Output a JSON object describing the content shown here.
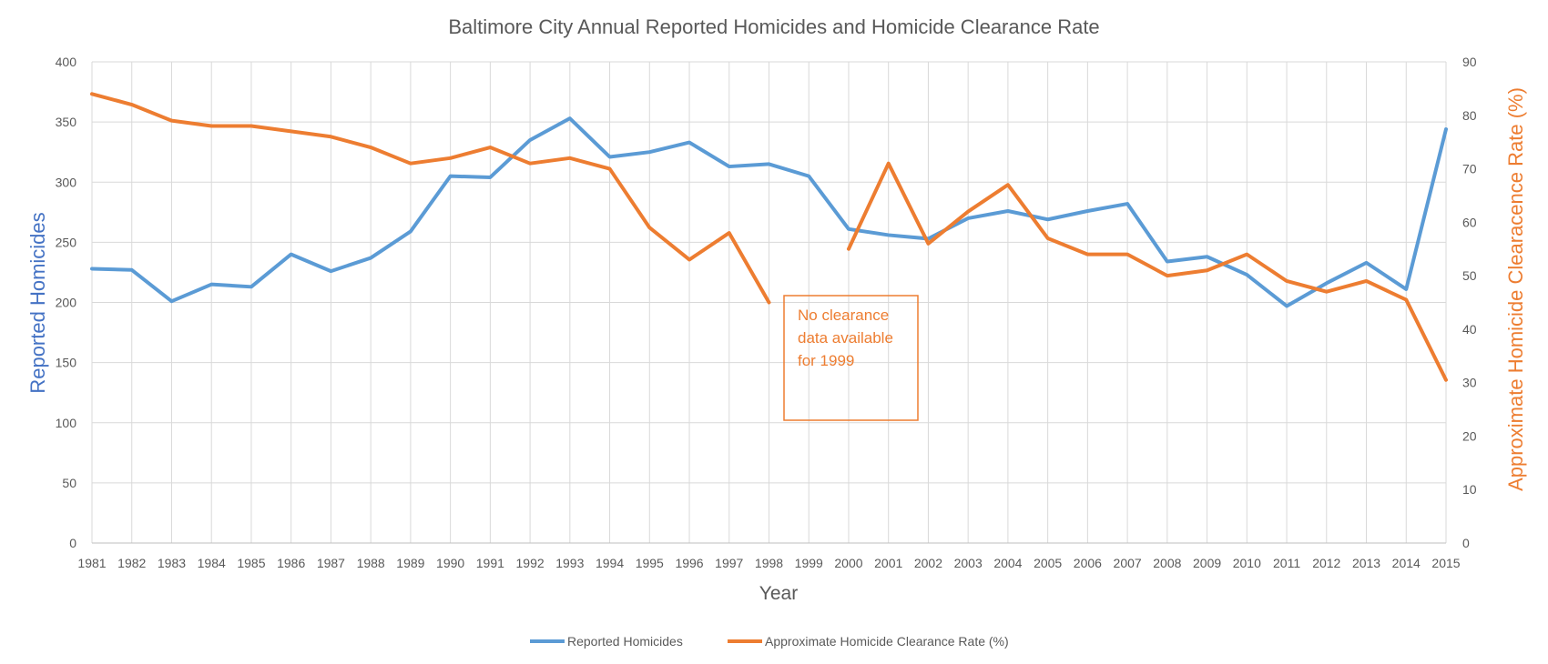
{
  "chart_data": {
    "type": "line",
    "title": "Baltimore City Annual Reported Homicides and Homicide Clearance Rate",
    "xlabel": "Year",
    "ylabel_left": "Reported Homicides",
    "ylabel_right": "Approximate Homicide Clearacence Rate (%)",
    "x": [
      "1981",
      "1982",
      "1983",
      "1984",
      "1985",
      "1986",
      "1987",
      "1988",
      "1989",
      "1990",
      "1991",
      "1992",
      "1993",
      "1994",
      "1995",
      "1996",
      "1997",
      "1998",
      "1999",
      "2000",
      "2001",
      "2002",
      "2003",
      "2004",
      "2005",
      "2006",
      "2007",
      "2008",
      "2009",
      "2010",
      "2011",
      "2012",
      "2013",
      "2014",
      "2015"
    ],
    "y_left_ticks": [
      "0",
      "50",
      "100",
      "150",
      "200",
      "250",
      "300",
      "350",
      "400"
    ],
    "y_right_ticks": [
      "0",
      "10",
      "20",
      "30",
      "40",
      "50",
      "60",
      "70",
      "80",
      "90"
    ],
    "ylim_left": [
      0,
      400
    ],
    "ylim_right": [
      0,
      90
    ],
    "grid": true,
    "legend_position": "bottom",
    "series": [
      {
        "name": "Reported Homicides",
        "axis": "left",
        "color": "#5b9bd5",
        "values": [
          228,
          227,
          201,
          215,
          213,
          240,
          226,
          237,
          259,
          305,
          304,
          335,
          353,
          321,
          325,
          333,
          313,
          315,
          305,
          261,
          256,
          253,
          270,
          276,
          269,
          276,
          282,
          234,
          238,
          223,
          197,
          216,
          233,
          211,
          344
        ]
      },
      {
        "name": "Approximate Homicide Clearance Rate (%)",
        "axis": "right",
        "color": "#ed7d31",
        "values": [
          84,
          82,
          79,
          78,
          78,
          77,
          76,
          74,
          71,
          72,
          74,
          71,
          72,
          70,
          59,
          53,
          58,
          45,
          null,
          55,
          71,
          56,
          62,
          67,
          57,
          54,
          54,
          50,
          51,
          54,
          49,
          47,
          49,
          45.5,
          30.5
        ]
      }
    ],
    "annotation": {
      "lines": [
        "No clearance",
        "data available",
        "for 1999"
      ],
      "color": "#ed7d31"
    }
  }
}
